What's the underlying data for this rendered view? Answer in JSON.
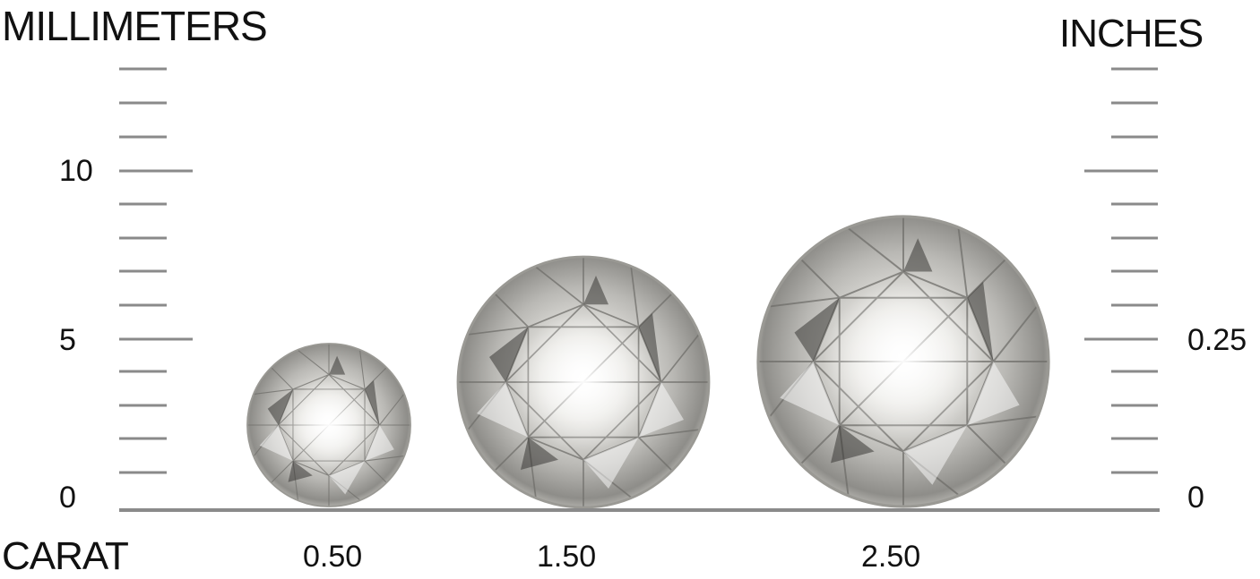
{
  "left_axis": {
    "title": "MILLIMETERS",
    "labels": [
      "10",
      "5",
      "0"
    ]
  },
  "right_axis": {
    "title": "INCHES",
    "labels": [
      "0.25",
      "0"
    ]
  },
  "carat": {
    "title": "CARAT",
    "values": [
      "0.50",
      "1.50",
      "2.50"
    ]
  },
  "colors": {
    "tick": "#8a8a8a",
    "baseline": "#8a8a8a",
    "text": "#111111"
  }
}
